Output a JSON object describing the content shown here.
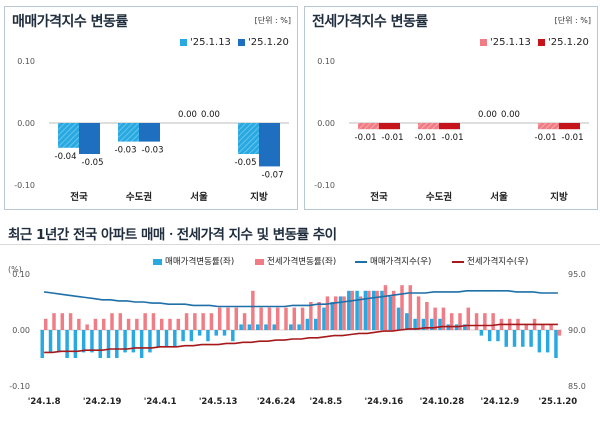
{
  "sale_panel": {
    "title": "매매가격지수 변동률",
    "unit": "[단위 : %]",
    "legend": [
      "'25.1.13",
      "'25.1.20"
    ],
    "colors": [
      "#28a9e1",
      "#1f6fc1"
    ]
  },
  "jeonse_panel": {
    "title": "전세가격지수 변동률",
    "unit": "[단위 : %]",
    "legend": [
      "'25.1.13",
      "'25.1.20"
    ],
    "colors": [
      "#f07d85",
      "#c6141c"
    ]
  },
  "trend": {
    "title": "최근 1년간 전국 아파트 매매ㆍ전세가격 지수 및 변동률 추이",
    "unit_left": "(%)",
    "legend": [
      "매매가격변동률(좌)",
      "전세가격변동률(좌)",
      "매매가격지수(우)",
      "전세가격지수(우)"
    ],
    "colors": [
      "#28a9e1",
      "#f07d85",
      "#1f6fa8",
      "#a6191b"
    ]
  },
  "chart_data": [
    {
      "type": "bar",
      "title": "매매가격지수 변동률",
      "categories": [
        "전국",
        "수도권",
        "서울",
        "지방"
      ],
      "series": [
        {
          "name": "'25.1.13",
          "values": [
            -0.04,
            -0.03,
            0.0,
            -0.05
          ]
        },
        {
          "name": "'25.1.20",
          "values": [
            -0.05,
            -0.03,
            0.0,
            -0.07
          ]
        }
      ],
      "value_labels": [
        [
          "-0.04",
          "-0.03",
          "0.00",
          "-0.05"
        ],
        [
          "-0.05",
          "-0.03",
          "0.00",
          "-0.07"
        ]
      ],
      "ylim": [
        -0.1,
        0.1
      ],
      "yticks": [
        "0.10",
        "0.00",
        "-0.10"
      ],
      "grid": false,
      "legend_position": "top-right"
    },
    {
      "type": "bar",
      "title": "전세가격지수 변동률",
      "categories": [
        "전국",
        "수도권",
        "서울",
        "지방"
      ],
      "series": [
        {
          "name": "'25.1.13",
          "values": [
            -0.01,
            -0.01,
            0.0,
            -0.01
          ]
        },
        {
          "name": "'25.1.20",
          "values": [
            -0.01,
            -0.01,
            0.0,
            -0.01
          ]
        }
      ],
      "value_labels": [
        [
          "-0.01",
          "-0.01",
          "0.00",
          "-0.01"
        ],
        [
          "-0.01",
          "-0.01",
          "0.00",
          "-0.01"
        ]
      ],
      "ylim": [
        -0.1,
        0.1
      ],
      "yticks": [
        "0.10",
        "0.00",
        "-0.10"
      ],
      "grid": false,
      "legend_position": "top-right"
    },
    {
      "type": "bar",
      "title": "최근 1년간 전국 아파트 매매ㆍ전세가격 지수 및 변동률 추이",
      "x_tick_labels": [
        "'24.1.8",
        "'24.2.19",
        "'24.4.1",
        "'24.5.13",
        "'24.6.24",
        "'24.8.5",
        "'24.9.16",
        "'24.10.28",
        "'24.12.9",
        "'25.1.20"
      ],
      "ylim_left": [
        -0.1,
        0.1
      ],
      "yticks_left": [
        "0.10",
        "0.00",
        "-0.10"
      ],
      "ylim_right": [
        85.0,
        95.0
      ],
      "yticks_right": [
        "95.0",
        "90.0",
        "85.0"
      ],
      "series": [
        {
          "name": "매매가격변동률(좌)",
          "type": "bar",
          "axis": "left",
          "values": [
            -0.05,
            -0.04,
            -0.04,
            -0.05,
            -0.05,
            -0.04,
            -0.04,
            -0.05,
            -0.05,
            -0.05,
            -0.04,
            -0.04,
            -0.05,
            -0.04,
            -0.03,
            -0.03,
            -0.03,
            -0.02,
            -0.02,
            -0.01,
            -0.02,
            -0.01,
            -0.01,
            -0.02,
            0.01,
            0.01,
            0.01,
            0.01,
            0.01,
            0.0,
            0.01,
            0.01,
            0.02,
            0.02,
            0.04,
            0.05,
            0.06,
            0.07,
            0.07,
            0.07,
            0.07,
            0.07,
            0.06,
            0.04,
            0.03,
            0.02,
            0.02,
            0.02,
            0.02,
            0.01,
            0.01,
            0.01,
            0.0,
            -0.01,
            -0.02,
            -0.02,
            -0.03,
            -0.03,
            -0.03,
            -0.03,
            -0.04,
            -0.04,
            -0.05
          ]
        },
        {
          "name": "전세가격변동률(좌)",
          "type": "bar",
          "axis": "left",
          "values": [
            0.02,
            0.03,
            0.03,
            0.03,
            0.02,
            0.01,
            0.02,
            0.02,
            0.03,
            0.03,
            0.02,
            0.02,
            0.03,
            0.03,
            0.02,
            0.02,
            0.02,
            0.03,
            0.03,
            0.03,
            0.03,
            0.04,
            0.04,
            0.04,
            0.03,
            0.07,
            0.04,
            0.04,
            0.04,
            0.04,
            0.04,
            0.04,
            0.05,
            0.05,
            0.06,
            0.06,
            0.06,
            0.07,
            0.06,
            0.07,
            0.07,
            0.08,
            0.07,
            0.08,
            0.08,
            0.06,
            0.05,
            0.04,
            0.04,
            0.03,
            0.03,
            0.04,
            0.03,
            0.03,
            0.03,
            0.02,
            0.02,
            0.02,
            0.01,
            0.02,
            0.01,
            0.01,
            -0.01
          ]
        },
        {
          "name": "매매가격지수(우)",
          "type": "line",
          "axis": "right",
          "values": [
            93.4,
            93.3,
            93.2,
            93.1,
            93.0,
            92.9,
            92.8,
            92.7,
            92.7,
            92.6,
            92.6,
            92.5,
            92.5,
            92.4,
            92.4,
            92.3,
            92.3,
            92.3,
            92.2,
            92.2,
            92.2,
            92.1,
            92.1,
            92.1,
            92.1,
            92.1,
            92.1,
            92.1,
            92.1,
            92.1,
            92.2,
            92.2,
            92.2,
            92.3,
            92.3,
            92.4,
            92.5,
            92.6,
            92.7,
            92.8,
            92.9,
            93.0,
            93.1,
            93.2,
            93.3,
            93.3,
            93.3,
            93.4,
            93.4,
            93.4,
            93.4,
            93.5,
            93.5,
            93.5,
            93.5,
            93.5,
            93.5,
            93.4,
            93.4,
            93.4,
            93.3,
            93.3,
            93.3
          ]
        },
        {
          "name": "전세가격지수(우)",
          "type": "line",
          "axis": "right",
          "values": [
            88.0,
            88.0,
            88.1,
            88.1,
            88.1,
            88.2,
            88.2,
            88.2,
            88.3,
            88.3,
            88.3,
            88.4,
            88.4,
            88.4,
            88.5,
            88.5,
            88.5,
            88.6,
            88.6,
            88.7,
            88.7,
            88.7,
            88.8,
            88.8,
            88.9,
            88.9,
            89.0,
            89.0,
            89.1,
            89.1,
            89.2,
            89.2,
            89.3,
            89.3,
            89.4,
            89.5,
            89.5,
            89.6,
            89.7,
            89.7,
            89.8,
            89.9,
            89.9,
            90.0,
            90.1,
            90.1,
            90.2,
            90.2,
            90.3,
            90.3,
            90.3,
            90.4,
            90.4,
            90.4,
            90.4,
            90.5,
            90.5,
            90.5,
            90.5,
            90.5,
            90.5,
            90.5,
            90.5
          ]
        }
      ],
      "grid": false,
      "legend_position": "top"
    }
  ]
}
